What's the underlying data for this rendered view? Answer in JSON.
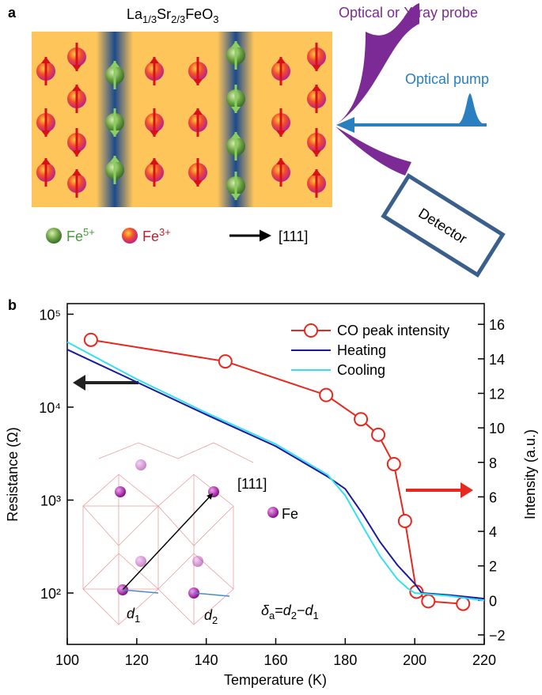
{
  "panel_a": {
    "label": "a",
    "formula": [
      "La",
      "1/3",
      "Sr",
      "2/3",
      "FeO",
      "3"
    ],
    "probe": "Optical or X-ray probe",
    "pump": "Optical  pump",
    "detector": "Detector",
    "legend": [
      {
        "ion": "Fe",
        "charge": "5+"
      },
      {
        "ion": "Fe",
        "charge": "3+"
      }
    ],
    "direction": "[111]"
  },
  "chart_data": {
    "type": "line",
    "label": "b",
    "xlabel": "Temperature (K)",
    "ylabel": "Resistance (Ω)",
    "y2label": "Intensity (a.u.)",
    "xlim": [
      100,
      220
    ],
    "xticks": [
      100,
      120,
      140,
      160,
      180,
      200,
      220
    ],
    "ylim": [
      28,
      130000
    ],
    "ylog": true,
    "yticks": [
      {
        "value": 100,
        "label": "10²"
      },
      {
        "value": 1000,
        "label": "10³"
      },
      {
        "value": 10000,
        "label": "10⁴"
      },
      {
        "value": 100000,
        "label": "10⁵"
      }
    ],
    "y2lim": [
      -2.55,
      17.2
    ],
    "y2ticks": [
      {
        "value": -2,
        "label": "−2"
      },
      0,
      2,
      4,
      6,
      8,
      10,
      12,
      14,
      16
    ],
    "legend": "upper right",
    "series": [
      {
        "name": "CO peak intensity",
        "color": "#e8281e",
        "axis": "y2",
        "marker": "circle",
        "x": [
          106.8,
          145.5,
          174.5,
          184.5,
          189.5,
          194,
          197.2,
          200.5,
          203.9,
          213.9
        ],
        "values": [
          15.1,
          13.85,
          11.9,
          10.5,
          9.6,
          7.9,
          4.6,
          0.5,
          -0.05,
          -0.2
        ]
      },
      {
        "name": "Heating",
        "color": "#1a1aa0",
        "x": [
          100,
          120,
          140,
          160,
          175,
          180,
          185,
          190,
          195,
          200,
          202,
          210,
          220
        ],
        "values": [
          41700,
          18600,
          8300,
          3800,
          1780,
          1320,
          710,
          355,
          200,
          126,
          100,
          95,
          87
        ]
      },
      {
        "name": "Cooling",
        "color": "#33e0f0",
        "x": [
          100,
          120,
          140,
          160,
          175,
          180,
          185,
          190,
          195,
          198,
          200,
          210,
          220
        ],
        "values": [
          50100,
          20000,
          8700,
          4000,
          1860,
          1120,
          525,
          250,
          141,
          112,
          100,
          93,
          83
        ]
      }
    ],
    "annotations": {
      "direction": "[111]",
      "atom": "Fe",
      "d1": [
        "d",
        "1"
      ],
      "d2": [
        "d",
        "2"
      ],
      "delta": [
        "δ",
        "a",
        "=",
        "d",
        "2",
        "−",
        "d",
        "1"
      ]
    }
  }
}
